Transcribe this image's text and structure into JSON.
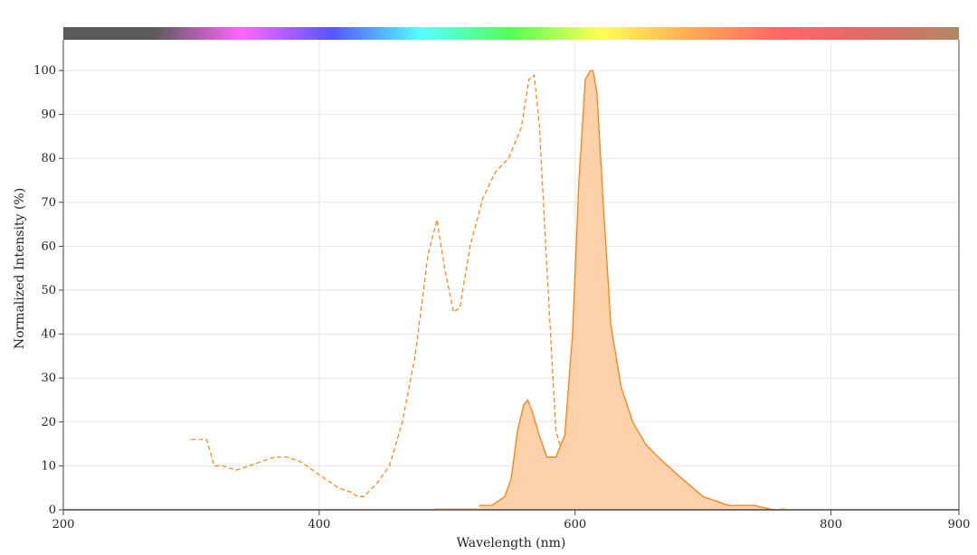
{
  "chart_data": {
    "type": "area",
    "title": "",
    "xlabel": "Wavelength (nm)",
    "ylabel": "Normalized Intensity (%)",
    "xlim": [
      200,
      900
    ],
    "ylim": [
      0,
      100
    ],
    "x_ticks": [
      "200",
      "400",
      "600",
      "800",
      "900"
    ],
    "y_ticks": [
      "0",
      "10",
      "20",
      "30",
      "40",
      "50",
      "60",
      "70",
      "80",
      "90",
      "100"
    ],
    "grid": true,
    "legend": "none",
    "colors": {
      "series": "#ff7f0e",
      "fill": "#fdd2aa",
      "grid": "#e6e6e6",
      "axis": "#444444",
      "spectrum_bar": [
        "#5a5a5a",
        "#5a5a5a",
        "#ff66ff",
        "#5555ff",
        "#55ffff",
        "#55ff55",
        "#ffff55",
        "#ffaa55",
        "#ff6666",
        "#e06a6a",
        "#b08860"
      ]
    },
    "series": [
      {
        "style": "dashed",
        "x": [
          300,
          312,
          318,
          325,
          335,
          345,
          355,
          365,
          375,
          385,
          395,
          405,
          415,
          425,
          430,
          435,
          445,
          455,
          465,
          475,
          485,
          492,
          498,
          505,
          510,
          518,
          528,
          538,
          548,
          558,
          564,
          568,
          572,
          578,
          585,
          592,
          600,
          608,
          615,
          625,
          635,
          645,
          665,
          675
        ],
        "y": [
          16,
          16,
          10,
          10,
          9,
          10,
          11,
          12,
          12,
          11,
          9,
          7,
          5,
          4,
          3,
          3,
          6,
          10,
          20,
          35,
          58,
          66,
          55,
          45,
          46,
          60,
          71,
          77,
          80,
          87,
          98,
          99,
          88,
          55,
          18,
          11,
          13,
          17,
          14,
          5,
          2,
          1,
          1,
          1
        ]
      },
      {
        "style": "solid-filled",
        "x": [
          525,
          535,
          545,
          550,
          555,
          560,
          563,
          567,
          572,
          578,
          585,
          592,
          598,
          603,
          608,
          612,
          614,
          617,
          622,
          628,
          636,
          645,
          655,
          665,
          680,
          700,
          720,
          740,
          755,
          760
        ],
        "y": [
          1,
          1,
          3,
          7,
          18,
          24,
          25,
          22,
          17,
          12,
          12,
          17,
          40,
          75,
          98,
          100,
          100,
          95,
          70,
          42,
          28,
          20,
          15,
          12,
          8,
          3,
          1,
          1,
          0,
          0
        ]
      }
    ]
  }
}
